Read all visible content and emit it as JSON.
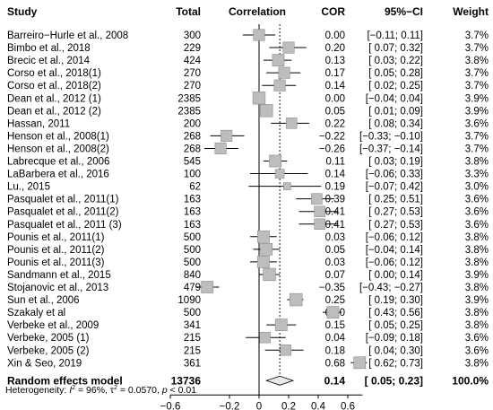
{
  "header": {
    "study": "Study",
    "total": "Total",
    "correlation": "Correlation",
    "cor": "COR",
    "ci": "95%−CI",
    "weight": "Weight"
  },
  "footer": {
    "heterogeneity_prefix": "Heterogeneity: ",
    "heterogeneity_i2": "I",
    "heterogeneity_rest": " = 96%, τ",
    "heterogeneity_tau": " = 0.0570, ",
    "heterogeneity_p": "p",
    "heterogeneity_end": " < 0.01"
  },
  "chart_data": {
    "type": "forest",
    "xlabel": "",
    "xlim": [
      -0.6,
      0.7
    ],
    "x_ticks": [
      "−0.6",
      "−0.2",
      "0",
      "0.2",
      "0.4",
      "0.6"
    ],
    "x_tick_values": [
      -0.6,
      -0.2,
      0,
      0.2,
      0.4,
      0.6
    ],
    "reference_line": 0,
    "studies": [
      {
        "study": "Barreiro−Hurle et al., 2008",
        "total": "300",
        "cor": 0.0,
        "lo": -0.11,
        "hi": 0.11,
        "cor_text": "0.00",
        "ci_text": "[−0.11; 0.11]",
        "weight": "3.7%"
      },
      {
        "study": "Bimbo et al., 2018",
        "total": "229",
        "cor": 0.2,
        "lo": 0.07,
        "hi": 0.32,
        "cor_text": "0.20",
        "ci_text": "[ 0.07; 0.32]",
        "weight": "3.7%"
      },
      {
        "study": "Brecic et al., 2014",
        "total": "424",
        "cor": 0.13,
        "lo": 0.03,
        "hi": 0.22,
        "cor_text": "0.13",
        "ci_text": "[ 0.03; 0.22]",
        "weight": "3.8%"
      },
      {
        "study": "Corso et al., 2018(1)",
        "total": "270",
        "cor": 0.17,
        "lo": 0.05,
        "hi": 0.28,
        "cor_text": "0.17",
        "ci_text": "[ 0.05; 0.28]",
        "weight": "3.7%"
      },
      {
        "study": "Corso et al., 2018(2)",
        "total": "270",
        "cor": 0.14,
        "lo": 0.02,
        "hi": 0.25,
        "cor_text": "0.14",
        "ci_text": "[ 0.02; 0.25]",
        "weight": "3.7%"
      },
      {
        "study": "Dean et al., 2012 (1)",
        "total": "2385",
        "cor": 0.0,
        "lo": -0.04,
        "hi": 0.04,
        "cor_text": "0.00",
        "ci_text": "[−0.04; 0.04]",
        "weight": "3.9%"
      },
      {
        "study": "Dean et al., 2012 (2)",
        "total": "2385",
        "cor": 0.05,
        "lo": 0.01,
        "hi": 0.09,
        "cor_text": "0.05",
        "ci_text": "[ 0.01; 0.09]",
        "weight": "3.9%"
      },
      {
        "study": "Hassan, 2011",
        "total": "200",
        "cor": 0.22,
        "lo": 0.08,
        "hi": 0.34,
        "cor_text": "0.22",
        "ci_text": "[ 0.08; 0.34]",
        "weight": "3.6%"
      },
      {
        "study": "Henson et al., 2008(1)",
        "total": "268",
        "cor": -0.22,
        "lo": -0.33,
        "hi": -0.1,
        "cor_text": "−0.22",
        "ci_text": "[−0.33; −0.10]",
        "weight": "3.7%"
      },
      {
        "study": "Henson et al., 2008(2)",
        "total": "268",
        "cor": -0.26,
        "lo": -0.37,
        "hi": -0.14,
        "cor_text": "−0.26",
        "ci_text": "[−0.37; −0.14]",
        "weight": "3.7%"
      },
      {
        "study": "Labrecque et al., 2006",
        "total": "545",
        "cor": 0.11,
        "lo": 0.03,
        "hi": 0.19,
        "cor_text": "0.11",
        "ci_text": "[ 0.03; 0.19]",
        "weight": "3.8%"
      },
      {
        "study": "LaBarbera et al., 2016",
        "total": "100",
        "cor": 0.14,
        "lo": -0.06,
        "hi": 0.33,
        "cor_text": "0.14",
        "ci_text": "[−0.06; 0.33]",
        "weight": "3.3%"
      },
      {
        "study": "Lu., 2015",
        "total": "62",
        "cor": 0.19,
        "lo": -0.07,
        "hi": 0.42,
        "cor_text": "0.19",
        "ci_text": "[−0.07; 0.42]",
        "weight": "3.0%"
      },
      {
        "study": "Pasqualet et al., 2011(1)",
        "total": "163",
        "cor": 0.39,
        "lo": 0.25,
        "hi": 0.51,
        "cor_text": "0.39",
        "ci_text": "[ 0.25; 0.51]",
        "weight": "3.6%"
      },
      {
        "study": "Pasqualet et al., 2011(2)",
        "total": "163",
        "cor": 0.41,
        "lo": 0.27,
        "hi": 0.53,
        "cor_text": "0.41",
        "ci_text": "[ 0.27; 0.53]",
        "weight": "3.6%"
      },
      {
        "study": "Pasqualet et al., 2011 (3)",
        "total": "163",
        "cor": 0.41,
        "lo": 0.27,
        "hi": 0.53,
        "cor_text": "0.41",
        "ci_text": "[ 0.27; 0.53]",
        "weight": "3.6%"
      },
      {
        "study": "Pounis et al., 2011(1)",
        "total": "500",
        "cor": 0.03,
        "lo": -0.06,
        "hi": 0.12,
        "cor_text": "0.03",
        "ci_text": "[−0.06; 0.12]",
        "weight": "3.8%"
      },
      {
        "study": "Pounis et al., 2011(2)",
        "total": "500",
        "cor": 0.05,
        "lo": -0.04,
        "hi": 0.14,
        "cor_text": "0.05",
        "ci_text": "[−0.04; 0.14]",
        "weight": "3.8%"
      },
      {
        "study": "Pounis et al., 2011(3)",
        "total": "500",
        "cor": 0.03,
        "lo": -0.06,
        "hi": 0.12,
        "cor_text": "0.03",
        "ci_text": "[−0.06; 0.12]",
        "weight": "3.8%"
      },
      {
        "study": "Sandmann et al., 2015",
        "total": "840",
        "cor": 0.07,
        "lo": 0.0,
        "hi": 0.14,
        "cor_text": "0.07",
        "ci_text": "[ 0.00; 0.14]",
        "weight": "3.9%"
      },
      {
        "study": "Stojanovic et al., 2013",
        "total": "479",
        "cor": -0.35,
        "lo": -0.43,
        "hi": -0.27,
        "cor_text": "−0.35",
        "ci_text": "[−0.43; −0.27]",
        "weight": "3.8%"
      },
      {
        "study": "Sun et al., 2006",
        "total": "1090",
        "cor": 0.25,
        "lo": 0.19,
        "hi": 0.3,
        "cor_text": "0.25",
        "ci_text": "[ 0.19; 0.30]",
        "weight": "3.9%"
      },
      {
        "study": "Szakaly et al",
        "total": "500",
        "cor": 0.5,
        "lo": 0.43,
        "hi": 0.56,
        "cor_text": "0.50",
        "ci_text": "[ 0.43; 0.56]",
        "weight": "3.8%"
      },
      {
        "study": "Verbeke et al., 2009",
        "total": "341",
        "cor": 0.15,
        "lo": 0.05,
        "hi": 0.25,
        "cor_text": "0.15",
        "ci_text": "[ 0.05; 0.25]",
        "weight": "3.8%"
      },
      {
        "study": "Verbeke, 2005 (1)",
        "total": "215",
        "cor": 0.04,
        "lo": -0.09,
        "hi": 0.18,
        "cor_text": "0.04",
        "ci_text": "[−0.09; 0.18]",
        "weight": "3.6%"
      },
      {
        "study": "Verbeke, 2005 (2)",
        "total": "215",
        "cor": 0.18,
        "lo": 0.04,
        "hi": 0.3,
        "cor_text": "0.18",
        "ci_text": "[ 0.04; 0.30]",
        "weight": "3.6%"
      },
      {
        "study": "Xin & Seo, 2019",
        "total": "361",
        "cor": 0.68,
        "lo": 0.62,
        "hi": 0.73,
        "cor_text": "0.68",
        "ci_text": "[ 0.62; 0.73]",
        "weight": "3.8%"
      }
    ],
    "pooled": {
      "label": "Random effects model",
      "total": "13736",
      "cor": 0.14,
      "lo": 0.05,
      "hi": 0.23,
      "cor_text": "0.14",
      "ci_text": "[ 0.05; 0.23]",
      "weight": "100.0%"
    },
    "colors": {
      "square": "#bdbdbd",
      "square_edge": "#8c8c8c",
      "diamond": "#e8e8e8",
      "line": "#000000"
    }
  }
}
